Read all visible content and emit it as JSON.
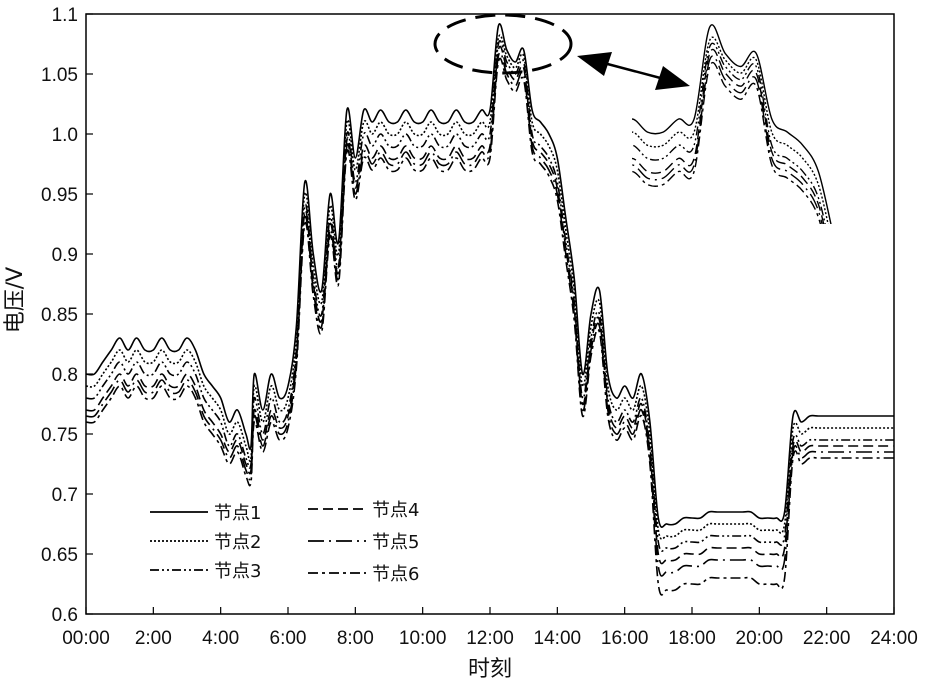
{
  "chart_data": {
    "type": "line",
    "title": "",
    "xlabel": "时刻",
    "ylabel": "电压/V",
    "xlim": [
      0,
      24
    ],
    "ylim": [
      0.6,
      1.1
    ],
    "x_tick_labels": [
      "00:00",
      "2:00",
      "4:00",
      "6:00",
      "8:00",
      "10:00",
      "12:00",
      "14:00",
      "16:00",
      "18:00",
      "20:00",
      "22:00",
      "24:00"
    ],
    "y_tick_labels": [
      "0.6",
      "0.65",
      "0.7",
      "0.75",
      "0.8",
      "0.85",
      "0.9",
      "0.95",
      "1.0",
      "1.05",
      "1.1"
    ],
    "legend": {
      "placement": "bottom-left",
      "columns": 2
    },
    "inset": "zoomed view of the 12:00–13:30 peak, placed top-right",
    "grid": false,
    "x": [
      0,
      0.25,
      0.5,
      0.75,
      1,
      1.25,
      1.5,
      1.75,
      2,
      2.25,
      2.5,
      2.75,
      3,
      3.25,
      3.5,
      3.75,
      4,
      4.25,
      4.5,
      4.75,
      4.9,
      5,
      5.25,
      5.5,
      5.75,
      6,
      6.25,
      6.5,
      6.75,
      7,
      7.25,
      7.5,
      7.75,
      8,
      8.25,
      8.5,
      8.75,
      9,
      9.25,
      9.5,
      9.75,
      10,
      10.25,
      10.5,
      10.75,
      11,
      11.25,
      11.5,
      11.75,
      12,
      12.25,
      12.5,
      12.75,
      13,
      13.25,
      13.5,
      13.75,
      14,
      14.25,
      14.5,
      14.75,
      15,
      15.25,
      15.5,
      15.75,
      16,
      16.25,
      16.5,
      16.75,
      17,
      17.25,
      17.5,
      17.75,
      18,
      18.25,
      18.5,
      18.75,
      19,
      19.25,
      19.5,
      19.75,
      20,
      20.25,
      20.5,
      20.75,
      21,
      21.25,
      21.5,
      21.75,
      22,
      22.25,
      22.5,
      22.75,
      23,
      23.25,
      23.5,
      23.75,
      24
    ],
    "series": [
      {
        "name": "节点1",
        "dash": "solid",
        "values": [
          0.8,
          0.8,
          0.81,
          0.82,
          0.83,
          0.82,
          0.83,
          0.82,
          0.82,
          0.83,
          0.82,
          0.82,
          0.83,
          0.82,
          0.8,
          0.79,
          0.78,
          0.76,
          0.77,
          0.75,
          0.74,
          0.8,
          0.77,
          0.8,
          0.78,
          0.79,
          0.84,
          0.96,
          0.9,
          0.87,
          0.95,
          0.91,
          1.02,
          0.98,
          1.02,
          1.01,
          1.02,
          1.01,
          1.01,
          1.02,
          1.01,
          1.01,
          1.02,
          1.01,
          1.01,
          1.02,
          1.01,
          1.01,
          1.02,
          1.02,
          1.09,
          1.07,
          1.06,
          1.07,
          1.02,
          1.01,
          1.0,
          0.98,
          0.93,
          0.88,
          0.8,
          0.85,
          0.87,
          0.8,
          0.78,
          0.79,
          0.78,
          0.8,
          0.76,
          0.68,
          0.675,
          0.675,
          0.68,
          0.68,
          0.68,
          0.685,
          0.685,
          0.685,
          0.685,
          0.685,
          0.685,
          0.68,
          0.68,
          0.68,
          0.685,
          0.765,
          0.76,
          0.765,
          0.765,
          0.765,
          0.765,
          0.765,
          0.765,
          0.765,
          0.765,
          0.765,
          0.765,
          0.765
        ]
      },
      {
        "name": "节点2",
        "dash": "dot",
        "values": [
          0.79,
          0.79,
          0.8,
          0.81,
          0.82,
          0.81,
          0.82,
          0.81,
          0.81,
          0.82,
          0.81,
          0.81,
          0.82,
          0.81,
          0.79,
          0.78,
          0.77,
          0.75,
          0.76,
          0.74,
          0.73,
          0.79,
          0.76,
          0.79,
          0.77,
          0.78,
          0.83,
          0.95,
          0.89,
          0.86,
          0.94,
          0.9,
          1.01,
          0.97,
          1.01,
          1.0,
          1.01,
          1.0,
          1.0,
          1.01,
          1.0,
          1.0,
          1.01,
          1.0,
          1.0,
          1.01,
          1.0,
          1.0,
          1.01,
          1.01,
          1.08,
          1.065,
          1.055,
          1.065,
          1.01,
          1.0,
          0.99,
          0.97,
          0.92,
          0.87,
          0.79,
          0.84,
          0.86,
          0.79,
          0.77,
          0.78,
          0.77,
          0.79,
          0.75,
          0.67,
          0.665,
          0.665,
          0.67,
          0.67,
          0.67,
          0.675,
          0.675,
          0.675,
          0.675,
          0.675,
          0.675,
          0.67,
          0.67,
          0.67,
          0.675,
          0.755,
          0.75,
          0.755,
          0.755,
          0.755,
          0.755,
          0.755,
          0.755,
          0.755,
          0.755,
          0.755,
          0.755,
          0.755
        ]
      },
      {
        "name": "节点3",
        "dash": "dash-dot-dot",
        "values": [
          0.78,
          0.78,
          0.79,
          0.8,
          0.81,
          0.8,
          0.81,
          0.8,
          0.8,
          0.81,
          0.8,
          0.8,
          0.81,
          0.8,
          0.78,
          0.77,
          0.76,
          0.74,
          0.75,
          0.73,
          0.725,
          0.78,
          0.75,
          0.78,
          0.76,
          0.77,
          0.82,
          0.94,
          0.88,
          0.85,
          0.93,
          0.89,
          1.0,
          0.96,
          1.0,
          0.99,
          1.0,
          0.99,
          0.99,
          1.0,
          0.99,
          0.99,
          1.0,
          0.99,
          0.99,
          1.0,
          0.99,
          0.99,
          1.0,
          1.0,
          1.075,
          1.06,
          1.05,
          1.06,
          1.0,
          0.99,
          0.98,
          0.96,
          0.91,
          0.86,
          0.78,
          0.83,
          0.85,
          0.78,
          0.76,
          0.77,
          0.76,
          0.78,
          0.74,
          0.66,
          0.655,
          0.655,
          0.66,
          0.66,
          0.66,
          0.665,
          0.665,
          0.665,
          0.665,
          0.665,
          0.665,
          0.66,
          0.66,
          0.66,
          0.665,
          0.745,
          0.74,
          0.745,
          0.745,
          0.745,
          0.745,
          0.745,
          0.745,
          0.745,
          0.745,
          0.745,
          0.745,
          0.745
        ]
      },
      {
        "name": "节点4",
        "dash": "long-dash",
        "values": [
          0.77,
          0.77,
          0.78,
          0.79,
          0.8,
          0.79,
          0.8,
          0.79,
          0.79,
          0.8,
          0.79,
          0.79,
          0.8,
          0.79,
          0.77,
          0.76,
          0.75,
          0.735,
          0.745,
          0.725,
          0.72,
          0.77,
          0.745,
          0.77,
          0.755,
          0.765,
          0.815,
          0.935,
          0.875,
          0.845,
          0.925,
          0.885,
          0.995,
          0.955,
          0.99,
          0.98,
          0.99,
          0.98,
          0.98,
          0.99,
          0.98,
          0.98,
          0.99,
          0.98,
          0.98,
          0.99,
          0.98,
          0.98,
          0.99,
          0.99,
          1.07,
          1.055,
          1.045,
          1.055,
          0.995,
          0.985,
          0.975,
          0.955,
          0.905,
          0.855,
          0.775,
          0.825,
          0.845,
          0.775,
          0.755,
          0.765,
          0.755,
          0.775,
          0.735,
          0.65,
          0.645,
          0.645,
          0.65,
          0.65,
          0.65,
          0.655,
          0.655,
          0.655,
          0.655,
          0.655,
          0.655,
          0.65,
          0.65,
          0.65,
          0.655,
          0.74,
          0.735,
          0.74,
          0.74,
          0.74,
          0.74,
          0.74,
          0.74,
          0.74,
          0.74,
          0.74,
          0.74,
          0.74
        ]
      },
      {
        "name": "节点5",
        "dash": "long-dash-dot",
        "values": [
          0.765,
          0.765,
          0.775,
          0.785,
          0.795,
          0.785,
          0.795,
          0.785,
          0.785,
          0.795,
          0.785,
          0.785,
          0.795,
          0.785,
          0.765,
          0.755,
          0.745,
          0.73,
          0.74,
          0.72,
          0.715,
          0.765,
          0.74,
          0.765,
          0.75,
          0.76,
          0.81,
          0.93,
          0.87,
          0.84,
          0.92,
          0.88,
          0.99,
          0.95,
          0.985,
          0.975,
          0.985,
          0.975,
          0.975,
          0.985,
          0.975,
          0.975,
          0.985,
          0.975,
          0.975,
          0.985,
          0.975,
          0.975,
          0.985,
          0.985,
          1.065,
          1.05,
          1.04,
          1.05,
          0.99,
          0.98,
          0.97,
          0.95,
          0.9,
          0.85,
          0.77,
          0.82,
          0.84,
          0.77,
          0.75,
          0.76,
          0.75,
          0.77,
          0.73,
          0.64,
          0.635,
          0.635,
          0.64,
          0.64,
          0.64,
          0.645,
          0.645,
          0.645,
          0.645,
          0.645,
          0.645,
          0.64,
          0.64,
          0.64,
          0.645,
          0.735,
          0.73,
          0.735,
          0.735,
          0.735,
          0.735,
          0.735,
          0.735,
          0.735,
          0.735,
          0.735,
          0.735,
          0.735
        ]
      },
      {
        "name": "节点6",
        "dash": "dash-dot",
        "values": [
          0.76,
          0.76,
          0.77,
          0.78,
          0.79,
          0.78,
          0.79,
          0.78,
          0.78,
          0.79,
          0.78,
          0.78,
          0.79,
          0.78,
          0.76,
          0.75,
          0.74,
          0.725,
          0.735,
          0.715,
          0.71,
          0.76,
          0.735,
          0.76,
          0.745,
          0.755,
          0.805,
          0.925,
          0.865,
          0.835,
          0.915,
          0.875,
          0.985,
          0.945,
          0.98,
          0.97,
          0.98,
          0.97,
          0.97,
          0.98,
          0.97,
          0.97,
          0.98,
          0.97,
          0.97,
          0.98,
          0.97,
          0.97,
          0.98,
          0.98,
          1.06,
          1.045,
          1.035,
          1.045,
          0.985,
          0.975,
          0.965,
          0.945,
          0.895,
          0.845,
          0.765,
          0.815,
          0.835,
          0.765,
          0.745,
          0.755,
          0.745,
          0.765,
          0.725,
          0.625,
          0.62,
          0.62,
          0.625,
          0.625,
          0.625,
          0.63,
          0.63,
          0.63,
          0.63,
          0.63,
          0.63,
          0.625,
          0.625,
          0.625,
          0.63,
          0.73,
          0.725,
          0.73,
          0.73,
          0.73,
          0.73,
          0.73,
          0.73,
          0.73,
          0.73,
          0.73,
          0.73,
          0.73
        ]
      }
    ]
  }
}
